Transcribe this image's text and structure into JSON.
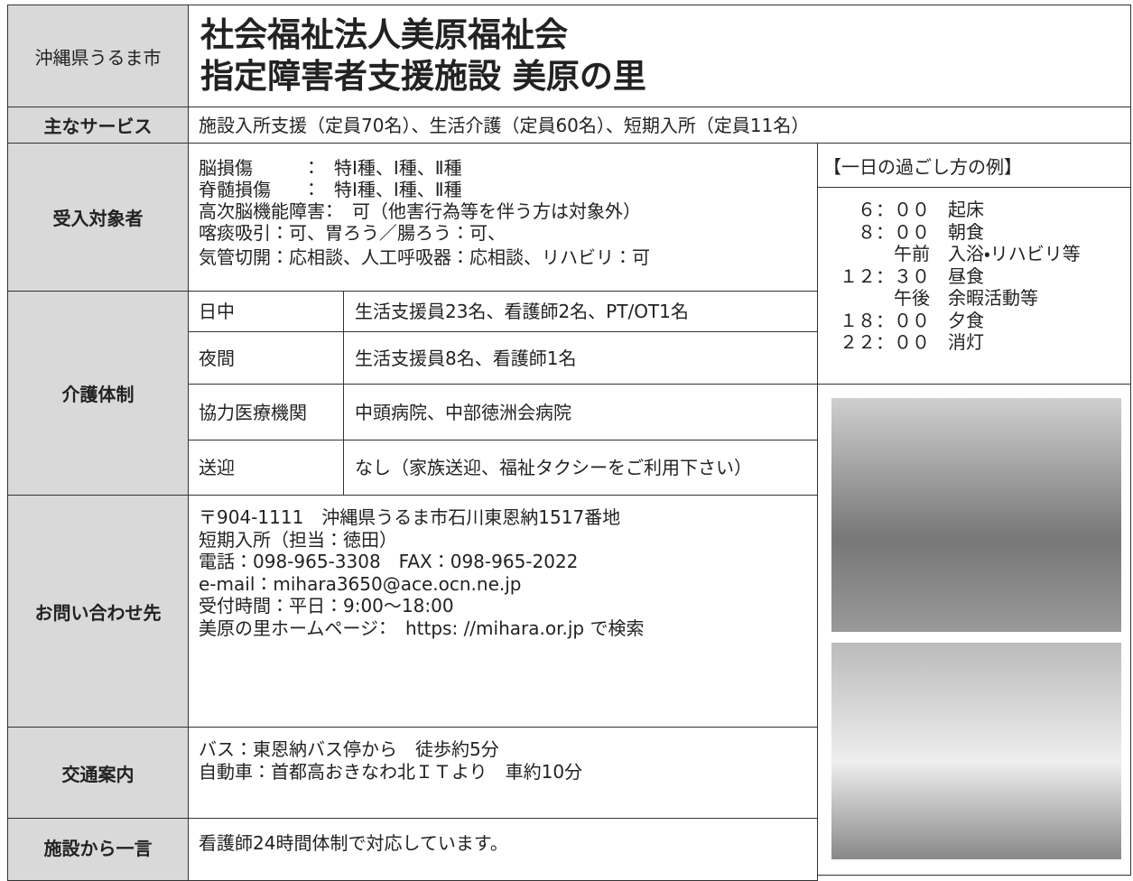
{
  "header": {
    "region": "沖縄県うるま市",
    "title_lines": [
      "社会福祉法人美原福祉会",
      "指定障害者支援施設 美原の里"
    ]
  },
  "services": {
    "label": "主なサービス",
    "text": "施設入所支援（定員70名）、生活介護（定員60名）、短期入所（定員11名）"
  },
  "targets": {
    "label": "受入対象者",
    "lines": [
      "脳損傷　　　：　特Ⅰ種、Ⅰ種、Ⅱ種",
      "脊髄損傷　　：　特Ⅰ種、Ⅰ種、Ⅱ種",
      "高次脳機能障害：　可（他害行為等を伴う方は対象外）",
      "喀痰吸引：可、胃ろう／腸ろう：可、",
      "気管切開：応相談、人工呼吸器：応相談、リハビリ：可"
    ]
  },
  "schedule": {
    "title": "【一日の過ごし方の例】",
    "items": [
      {
        "time": "６：００",
        "event": "起床"
      },
      {
        "time": "８：００",
        "event": "朝食"
      },
      {
        "time": "午前",
        "event": "入浴・リハビリ等"
      },
      {
        "time": "１２：３０",
        "event": "昼食"
      },
      {
        "time": "午後",
        "event": "余暇活動等"
      },
      {
        "time": "１８：００",
        "event": "夕食"
      },
      {
        "time": "２２：００",
        "event": "消灯"
      }
    ]
  },
  "care": {
    "label": "介護体制",
    "rows": [
      [
        "日中",
        "生活支援員23名、看護師2名、PT/OT1名"
      ],
      [
        "夜間",
        "生活支援員8名、看護師1名"
      ],
      [
        "協力医療機関",
        "中頭病院、中部徳洲会病院"
      ],
      [
        "送迎",
        "なし（家族送迎、福祉タクシーをご利用下さい）"
      ]
    ]
  },
  "contact": {
    "label": "お問い合わせ先",
    "lines": [
      "〒904-1111　沖縄県うるま市石川東恩納1517番地",
      "短期入所（担当：徳田）",
      "電話：098-965-3308　FAX：098-965-2022",
      "e-mail：mihara3650@ace.ocn.ne.jp",
      "受付時間：平日：9:00～18:00",
      "美原の里ホームページ：　https: //mihara.or.jp で検索"
    ]
  },
  "access": {
    "label": "交通案内",
    "lines": [
      "バス：東恩納バス停から　徒歩約5分",
      "自動車：首都高おきなわ北ＩＴより　車約10分"
    ]
  },
  "message": {
    "label": "施設から一言",
    "text": "看護師24時間体制で対応しています。"
  }
}
